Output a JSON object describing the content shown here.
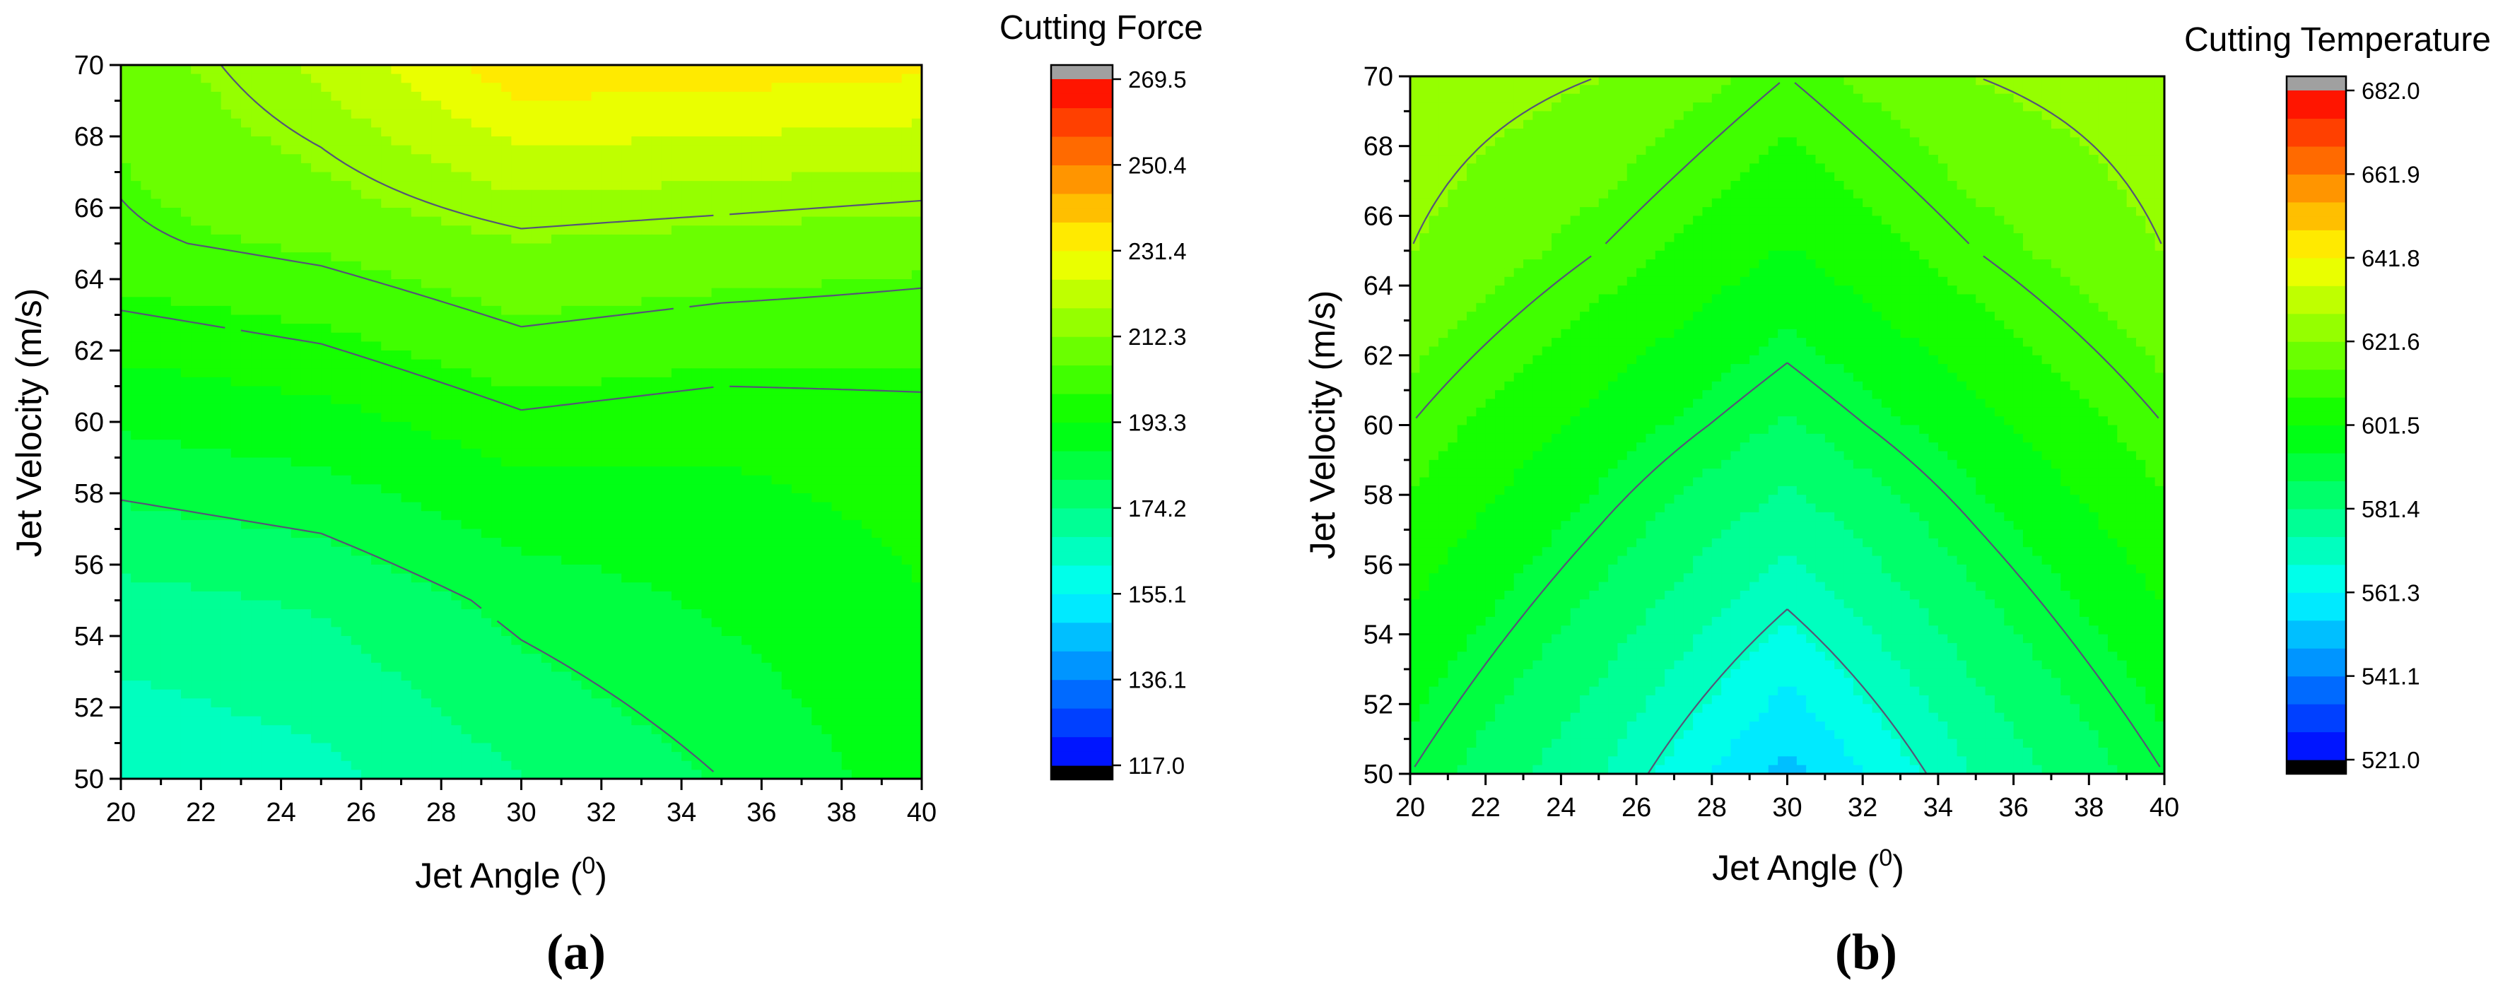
{
  "chart_data": [
    {
      "type": "heatmap",
      "panel_label": "(a)",
      "xlabel": "Jet Angle (",
      "xlabel_sup": "0",
      "xlabel_end": ")",
      "ylabel": "Jet Velocity (m/s)",
      "xlim": [
        20,
        40
      ],
      "ylim": [
        50,
        70
      ],
      "xticks": [
        "20",
        "22",
        "24",
        "26",
        "28",
        "30",
        "32",
        "34",
        "36",
        "38",
        "40"
      ],
      "yticks": [
        "50",
        "52",
        "54",
        "56",
        "58",
        "60",
        "62",
        "64",
        "66",
        "68",
        "70"
      ],
      "colorbar": {
        "title": "Cutting Force",
        "range": [
          117.0,
          269.5
        ],
        "tick_labels": [
          "117.0",
          "136.1",
          "155.1",
          "174.2",
          "193.3",
          "212.3",
          "231.4",
          "250.4",
          "269.5"
        ]
      },
      "x_points": [
        20,
        25,
        30,
        35,
        40
      ],
      "y_points": [
        50,
        55,
        60,
        65,
        70
      ],
      "z": [
        [
          162,
          166,
          174,
          181,
          190
        ],
        [
          172,
          175,
          183,
          188,
          193
        ],
        [
          188,
          191,
          197,
          195,
          196
        ],
        [
          204,
          207,
          212,
          210,
          208
        ],
        [
          208,
          220,
          236,
          235,
          233
        ]
      ],
      "contour_levels": [
        181,
        198,
        205,
        214
      ],
      "colors": [
        "#000000",
        "#0000ff",
        "#00ffff",
        "#00ff00",
        "#ffff00",
        "#ff0000",
        "#a0a0a0"
      ]
    },
    {
      "type": "heatmap",
      "panel_label": "(b)",
      "xlabel": "Jet Angle (",
      "xlabel_sup": "0",
      "xlabel_end": ")",
      "ylabel": "Jet Velocity (m/s)",
      "xlim": [
        20,
        40
      ],
      "ylim": [
        50,
        70
      ],
      "xticks": [
        "20",
        "22",
        "24",
        "26",
        "28",
        "30",
        "32",
        "34",
        "36",
        "38",
        "40"
      ],
      "yticks": [
        "50",
        "52",
        "54",
        "56",
        "58",
        "60",
        "62",
        "64",
        "66",
        "68",
        "70"
      ],
      "colorbar": {
        "title": "Cutting Temperature",
        "range": [
          521.0,
          682.0
        ],
        "tick_labels": [
          "521.0",
          "541.1",
          "561.3",
          "581.4",
          "601.5",
          "621.6",
          "641.8",
          "661.9",
          "682.0"
        ]
      },
      "x_points": [
        20,
        25,
        30,
        35,
        40
      ],
      "y_points": [
        50,
        55,
        60,
        65,
        70
      ],
      "z": [
        [
          592,
          575,
          552,
          575,
          592
        ],
        [
          602,
          587,
          570,
          587,
          602
        ],
        [
          612,
          599,
          587,
          599,
          612
        ],
        [
          622,
          612,
          601,
          612,
          622
        ],
        [
          626,
          622,
          612,
          622,
          626
        ]
      ],
      "contour_levels": [
        569,
        592,
        612,
        622
      ],
      "colors": [
        "#000000",
        "#0000ff",
        "#00ffff",
        "#00ff00",
        "#ffff00",
        "#ff0000",
        "#a0a0a0"
      ]
    }
  ]
}
